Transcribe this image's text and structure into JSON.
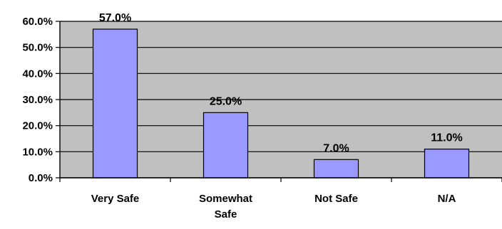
{
  "chart_data": {
    "type": "bar",
    "categories": [
      "Very Safe",
      "Somewhat Safe",
      "Not Safe",
      "N/A"
    ],
    "category_lines": [
      [
        "Very Safe"
      ],
      [
        "Somewhat",
        "Safe"
      ],
      [
        "Not Safe"
      ],
      [
        "N/A"
      ]
    ],
    "values": [
      57.0,
      25.0,
      7.0,
      11.0
    ],
    "data_labels": [
      "57.0%",
      "25.0%",
      "7.0%",
      "11.0%"
    ],
    "title": "",
    "xlabel": "",
    "ylabel": "",
    "ylim": [
      0,
      60
    ],
    "yticks": [
      0,
      10,
      20,
      30,
      40,
      50,
      60
    ],
    "ytick_labels": [
      "0.0%",
      "10.0%",
      "20.0%",
      "30.0%",
      "40.0%",
      "50.0%",
      "60.0%"
    ],
    "grid": true,
    "legend": "none",
    "colors": {
      "bar_fill": "#9999ff",
      "bar_stroke": "#000000",
      "plot_background": "#c0c0c0",
      "gridline": "#000000"
    }
  }
}
